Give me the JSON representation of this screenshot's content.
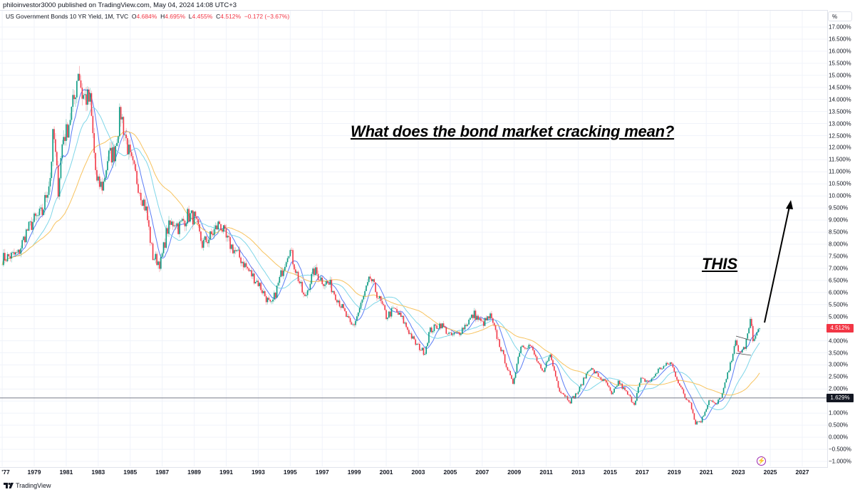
{
  "header": {
    "publisher_line": "philoinvestor3000 published on TradingView.com, May 04, 2024 14:08 UTC+3"
  },
  "legend": {
    "symbol": "US Government Bonds 10 YR Yield, 1M, TVC",
    "open_label": "O",
    "open": "4.684%",
    "high_label": "H",
    "high": "4.695%",
    "low_label": "L",
    "low": "4.455%",
    "close_label": "C",
    "close": "4.512%",
    "change": "−0.172 (−3.67%)"
  },
  "annotations": {
    "headline": "What does the bond market cracking mean?",
    "this_label": "THIS"
  },
  "price_axis": {
    "unit_label": "%",
    "current_price": "4.512%",
    "horizontal_line_price": "1.629%"
  },
  "brand": {
    "name": "TradingView"
  },
  "colors": {
    "up": "#089981",
    "down": "#f23645",
    "ma_fast": "#5b7cf5",
    "ma_mid": "#7fd6e8",
    "ma_slow": "#f7c35f",
    "grid": "#f0f3fa",
    "hline": "#787b86",
    "badge_dark": "#131722"
  },
  "chart_data": {
    "type": "candlestick",
    "title": "US Government Bonds 10 YR Yield, 1M, TVC",
    "xlabel": "",
    "ylabel": "%",
    "ylim": [
      -1.0,
      17.0
    ],
    "y_ticks": [
      "17.000%",
      "16.500%",
      "16.000%",
      "15.500%",
      "15.000%",
      "14.500%",
      "14.000%",
      "13.500%",
      "13.000%",
      "12.500%",
      "12.000%",
      "11.500%",
      "11.000%",
      "10.500%",
      "10.000%",
      "9.500%",
      "9.000%",
      "8.500%",
      "8.000%",
      "7.500%",
      "7.000%",
      "6.500%",
      "6.000%",
      "5.500%",
      "5.000%",
      "4.000%",
      "3.500%",
      "3.000%",
      "2.500%",
      "2.000%",
      "1.000%",
      "0.500%",
      "0.000%",
      "−0.500%",
      "−1.000%"
    ],
    "y_tick_values": [
      17,
      16.5,
      16,
      15.5,
      15,
      14.5,
      14,
      13.5,
      13,
      12.5,
      12,
      11.5,
      11,
      10.5,
      10,
      9.5,
      9,
      8.5,
      8,
      7.5,
      7,
      6.5,
      6,
      5.5,
      5,
      4,
      3.5,
      3,
      2.5,
      2,
      1,
      0.5,
      0,
      -0.5,
      -1
    ],
    "x_ticks": [
      "'77",
      "1979",
      "1981",
      "1983",
      "1985",
      "1987",
      "1989",
      "1991",
      "1993",
      "1995",
      "1997",
      "1999",
      "2001",
      "2003",
      "2005",
      "2007",
      "2009",
      "2011",
      "2013",
      "2015",
      "2017",
      "2019",
      "2021",
      "2023",
      "2025",
      "2027"
    ],
    "x_tick_years": [
      1977,
      1979,
      1981,
      1983,
      1985,
      1987,
      1989,
      1991,
      1993,
      1995,
      1997,
      1999,
      2001,
      2003,
      2005,
      2007,
      2009,
      2011,
      2013,
      2015,
      2017,
      2019,
      2021,
      2023,
      2025,
      2027
    ],
    "series_anchor_points": {
      "description": "Approximate monthly close (%) read from chart, [year, value]",
      "close": [
        [
          1977.0,
          7.4
        ],
        [
          1978.0,
          7.6
        ],
        [
          1978.5,
          8.5
        ],
        [
          1979.0,
          9.0
        ],
        [
          1979.5,
          9.3
        ],
        [
          1980.0,
          10.8
        ],
        [
          1980.2,
          12.7
        ],
        [
          1980.5,
          10.3
        ],
        [
          1980.8,
          12.5
        ],
        [
          1981.0,
          12.6
        ],
        [
          1981.5,
          14.0
        ],
        [
          1981.75,
          15.3
        ],
        [
          1982.0,
          14.2
        ],
        [
          1982.5,
          13.9
        ],
        [
          1982.9,
          10.5
        ],
        [
          1983.3,
          10.4
        ],
        [
          1983.6,
          11.6
        ],
        [
          1984.0,
          11.8
        ],
        [
          1984.4,
          13.5
        ],
        [
          1984.6,
          12.8
        ],
        [
          1985.0,
          11.5
        ],
        [
          1985.5,
          10.5
        ],
        [
          1986.0,
          9.4
        ],
        [
          1986.4,
          7.5
        ],
        [
          1986.9,
          7.2
        ],
        [
          1987.3,
          8.6
        ],
        [
          1987.8,
          9.0
        ],
        [
          1988.0,
          8.7
        ],
        [
          1988.6,
          9.2
        ],
        [
          1989.0,
          9.1
        ],
        [
          1989.5,
          8.0
        ],
        [
          1990.0,
          8.3
        ],
        [
          1990.6,
          8.9
        ],
        [
          1991.0,
          8.2
        ],
        [
          1991.9,
          7.4
        ],
        [
          1992.5,
          6.8
        ],
        [
          1993.0,
          6.4
        ],
        [
          1993.8,
          5.4
        ],
        [
          1994.0,
          5.8
        ],
        [
          1994.9,
          7.8
        ],
        [
          1995.0,
          7.7
        ],
        [
          1995.9,
          5.7
        ],
        [
          1996.2,
          6.4
        ],
        [
          1996.5,
          6.9
        ],
        [
          1997.0,
          6.5
        ],
        [
          1997.5,
          6.3
        ],
        [
          1998.0,
          5.7
        ],
        [
          1998.8,
          4.6
        ],
        [
          1999.0,
          4.7
        ],
        [
          1999.9,
          6.4
        ],
        [
          2000.0,
          6.6
        ],
        [
          2000.9,
          5.2
        ],
        [
          2001.0,
          5.0
        ],
        [
          2001.5,
          5.3
        ],
        [
          2002.0,
          4.9
        ],
        [
          2002.8,
          3.9
        ],
        [
          2003.4,
          3.5
        ],
        [
          2003.7,
          4.4
        ],
        [
          2004.4,
          4.7
        ],
        [
          2005.0,
          4.2
        ],
        [
          2005.5,
          4.3
        ],
        [
          2006.5,
          5.1
        ],
        [
          2007.0,
          4.7
        ],
        [
          2007.5,
          5.0
        ],
        [
          2008.0,
          4.0
        ],
        [
          2008.9,
          2.2
        ],
        [
          2009.4,
          3.8
        ],
        [
          2010.0,
          3.8
        ],
        [
          2010.8,
          2.6
        ],
        [
          2011.2,
          3.5
        ],
        [
          2011.8,
          2.0
        ],
        [
          2012.5,
          1.5
        ],
        [
          2013.0,
          1.9
        ],
        [
          2013.7,
          2.9
        ],
        [
          2014.0,
          2.7
        ],
        [
          2014.8,
          2.2
        ],
        [
          2015.1,
          1.7
        ],
        [
          2015.5,
          2.3
        ],
        [
          2016.5,
          1.4
        ],
        [
          2016.9,
          2.4
        ],
        [
          2017.5,
          2.3
        ],
        [
          2018.0,
          2.8
        ],
        [
          2018.8,
          3.1
        ],
        [
          2019.0,
          2.7
        ],
        [
          2019.7,
          1.6
        ],
        [
          2020.0,
          1.5
        ],
        [
          2020.3,
          0.6
        ],
        [
          2020.7,
          0.7
        ],
        [
          2021.2,
          1.6
        ],
        [
          2021.6,
          1.3
        ],
        [
          2022.0,
          1.8
        ],
        [
          2022.5,
          3.0
        ],
        [
          2022.8,
          4.0
        ],
        [
          2023.0,
          3.5
        ],
        [
          2023.4,
          3.7
        ],
        [
          2023.8,
          4.9
        ],
        [
          2023.95,
          3.9
        ],
        [
          2024.1,
          4.25
        ],
        [
          2024.33,
          4.51
        ]
      ]
    },
    "moving_averages": [
      {
        "name": "MA fast",
        "color": "#5b7cf5"
      },
      {
        "name": "MA mid",
        "color": "#7fd6e8"
      },
      {
        "name": "MA slow",
        "color": "#f7c35f"
      }
    ],
    "horizontal_line": 1.629,
    "last_value": 4.512,
    "legend_position": "top-left"
  }
}
